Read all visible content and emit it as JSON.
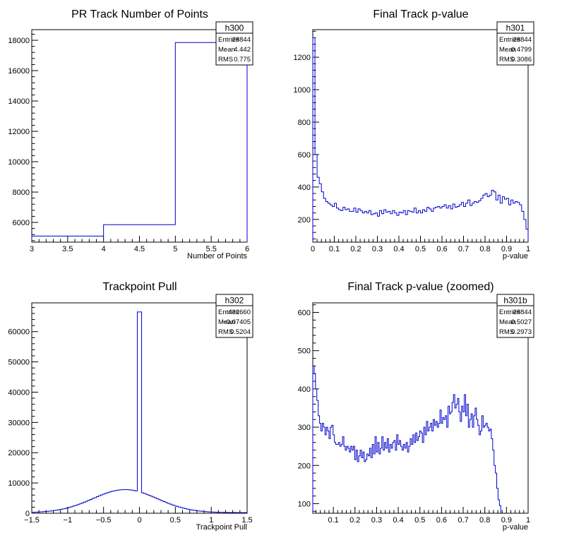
{
  "chart_data": [
    {
      "type": "histogram",
      "title": "PR Track Number of Points",
      "xlabel": "Number of Points",
      "ylabel": "",
      "xlim": [
        3,
        6
      ],
      "ylim": [
        4700,
        18700
      ],
      "xticks": [
        "3",
        "3.5",
        "4",
        "4.5",
        "5",
        "5.5",
        "6"
      ],
      "yticks": [
        "6000",
        "8000",
        "10000",
        "12000",
        "14000",
        "16000",
        "18000"
      ],
      "bin_edges": [
        3,
        4,
        5,
        6
      ],
      "values": [
        5100,
        5850,
        17850
      ],
      "stats": {
        "name": "h300",
        "entries_label": "Entries",
        "entries": "28844",
        "mean_label": "Mean",
        "mean": "4.442",
        "rms_label": "RMS",
        "rms": "0.775"
      }
    },
    {
      "type": "histogram",
      "title": "Final Track p-value",
      "xlabel": "p-value",
      "ylabel": "",
      "xlim": [
        0,
        1
      ],
      "ylim": [
        60,
        1370
      ],
      "xticks": [
        "0",
        "0.1",
        "0.2",
        "0.3",
        "0.4",
        "0.5",
        "0.6",
        "0.7",
        "0.8",
        "0.9",
        "1"
      ],
      "yticks": [
        "200",
        "400",
        "600",
        "800",
        "1000",
        "1200"
      ],
      "bin_width": 0.01,
      "values": [
        1320,
        600,
        460,
        420,
        370,
        330,
        310,
        300,
        290,
        280,
        300,
        270,
        260,
        255,
        275,
        260,
        265,
        250,
        250,
        270,
        245,
        265,
        255,
        240,
        250,
        240,
        255,
        230,
        235,
        240,
        220,
        255,
        235,
        260,
        245,
        250,
        235,
        255,
        240,
        225,
        245,
        240,
        255,
        230,
        255,
        250,
        245,
        270,
        240,
        255,
        240,
        260,
        250,
        275,
        265,
        250,
        270,
        275,
        280,
        270,
        280,
        290,
        270,
        285,
        265,
        295,
        275,
        280,
        290,
        305,
        280,
        300,
        320,
        285,
        300,
        310,
        305,
        315,
        330,
        350,
        360,
        340,
        350,
        380,
        370,
        320,
        350,
        300,
        340,
        325,
        330,
        290,
        320,
        300,
        310,
        305,
        290,
        250,
        200,
        140
      ]
    },
    {
      "type": "histogram",
      "title": "Trackpoint Pull",
      "xlabel": "Trackpoint Pull",
      "ylabel": "",
      "xlim": [
        -1.5,
        1.5
      ],
      "ylim": [
        0,
        69500
      ],
      "xticks": [
        "−1.5",
        "−1",
        "−0.5",
        "0",
        "0.5",
        "1",
        "1.5"
      ],
      "yticks": [
        "0",
        "10000",
        "20000",
        "30000",
        "40000",
        "50000",
        "60000"
      ],
      "peak": {
        "x": 0.0,
        "value": 66500
      },
      "stats": {
        "name": "h302",
        "entries_label": "Entries",
        "entries": "432660",
        "mean_label": "Mean",
        "mean": "−0.07405",
        "rms_label": "RMS",
        "rms": "0.5204"
      }
    },
    {
      "type": "histogram",
      "title": "Final Track p-value (zoomed)",
      "xlabel": "p-value",
      "ylabel": "",
      "xlim": [
        0.005,
        1
      ],
      "ylim": [
        75,
        625
      ],
      "xticks": [
        "0.1",
        "0.2",
        "0.3",
        "0.4",
        "0.5",
        "0.6",
        "0.7",
        "0.8",
        "0.9",
        "1"
      ],
      "yticks": [
        "100",
        "200",
        "300",
        "400",
        "500",
        "600"
      ],
      "bin_start": 0.005,
      "bin_width": 0.00625,
      "values": [
        460,
        440,
        400,
        370,
        330,
        310,
        290,
        310,
        300,
        280,
        300,
        290,
        270,
        300,
        305,
        280,
        260,
        255,
        255,
        260,
        250,
        255,
        275,
        250,
        240,
        250,
        245,
        235,
        250,
        240,
        250,
        215,
        240,
        210,
        225,
        240,
        220,
        235,
        210,
        215,
        230,
        225,
        245,
        220,
        255,
        230,
        275,
        235,
        260,
        230,
        245,
        275,
        240,
        260,
        245,
        270,
        235,
        255,
        245,
        260,
        265,
        240,
        280,
        255,
        265,
        250,
        240,
        255,
        245,
        260,
        235,
        250,
        270,
        255,
        280,
        260,
        285,
        265,
        275,
        290,
        285,
        260,
        300,
        280,
        315,
        290,
        300,
        310,
        290,
        320,
        305,
        315,
        300,
        310,
        345,
        310,
        325,
        320,
        330,
        300,
        355,
        335,
        340,
        365,
        385,
        350,
        360,
        375,
        340,
        315,
        355,
        340,
        385,
        330,
        360,
        300,
        320,
        335,
        300,
        330,
        350,
        320,
        305,
        280,
        290,
        330,
        300,
        305,
        310,
        300,
        290,
        295,
        270,
        240,
        200,
        180,
        140,
        110,
        95
      ]
    }
  ],
  "stats_boxes": [
    {
      "name": "h300",
      "entries_label": "Entries",
      "entries": "28844",
      "mean_label": "Mean",
      "mean": "4.442",
      "rms_label": "RMS",
      "rms": "0.775"
    },
    {
      "name": "h301",
      "entries_label": "Entries",
      "entries": "28844",
      "mean_label": "Mean",
      "mean": "0.4799",
      "rms_label": "RMS",
      "rms": "0.3086"
    },
    {
      "name": "h302",
      "entries_label": "Entries",
      "entries": "432660",
      "mean_label": "Mean",
      "mean": "−0.07405",
      "rms_label": "RMS",
      "rms": "0.5204"
    },
    {
      "name": "h301b",
      "entries_label": "Entries",
      "entries": "28844",
      "mean_label": "Mean",
      "mean": "0.5027",
      "rms_label": "RMS",
      "rms": "0.2973"
    }
  ],
  "colors": {
    "line": "#0000cc",
    "frame": "#000000"
  }
}
